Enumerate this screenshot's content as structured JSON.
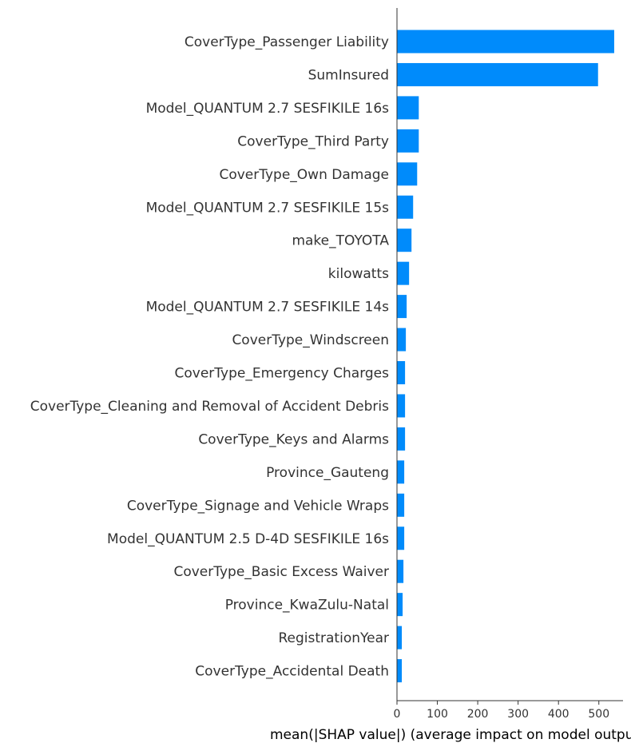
{
  "chart_data": {
    "type": "bar",
    "orientation": "horizontal",
    "categories": [
      "CoverType_Passenger Liability",
      "SumInsured",
      "Model_QUANTUM 2.7 SESFIKILE 16s",
      "CoverType_Third Party",
      "CoverType_Own Damage",
      "Model_QUANTUM 2.7 SESFIKILE 15s",
      "make_TOYOTA",
      "kilowatts",
      "Model_QUANTUM 2.7 SESFIKILE 14s",
      "CoverType_Windscreen",
      "CoverType_Emergency Charges",
      "CoverType_Cleaning and Removal of Accident Debris",
      "CoverType_Keys and Alarms",
      "Province_Gauteng",
      "CoverType_Signage and Vehicle Wraps",
      "Model_QUANTUM 2.5 D-4D SESFIKILE 16s",
      "CoverType_Basic Excess Waiver",
      "Province_KwaZulu-Natal",
      "RegistrationYear",
      "CoverType_Accidental Death"
    ],
    "values": [
      538,
      498,
      54,
      54,
      50,
      40,
      36,
      30,
      24,
      22,
      20,
      20,
      20,
      18,
      18,
      18,
      16,
      14,
      12,
      12
    ],
    "xlabel": "mean(|SHAP value|) (average impact on model output magnitude)",
    "ylabel": "",
    "title": "",
    "xlim": [
      0,
      560
    ],
    "xticks": [
      0,
      100,
      200,
      300,
      400,
      500
    ],
    "grid": false,
    "legend": "none",
    "bar_color": "#008bfb",
    "text_color": "#333333"
  }
}
